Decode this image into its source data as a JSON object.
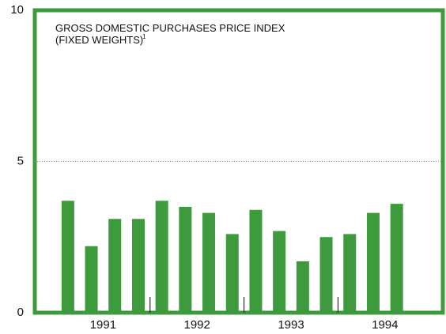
{
  "chart_data": {
    "type": "bar",
    "title": [
      "GROSS DOMESTIC PURCHASES PRICE INDEX",
      "(FIXED WEIGHTS)"
    ],
    "title_note": "1",
    "groups": [
      "1991",
      "1992",
      "1993",
      "1994"
    ],
    "values": [
      3.7,
      2.2,
      3.1,
      3.1,
      3.7,
      3.5,
      3.3,
      2.6,
      3.4,
      2.7,
      1.7,
      2.5,
      2.6,
      3.3,
      3.6,
      null
    ],
    "color": "#3d9a3d",
    "ylim": [
      0,
      10
    ],
    "yticks": [
      0,
      5,
      10
    ],
    "grid": true
  }
}
